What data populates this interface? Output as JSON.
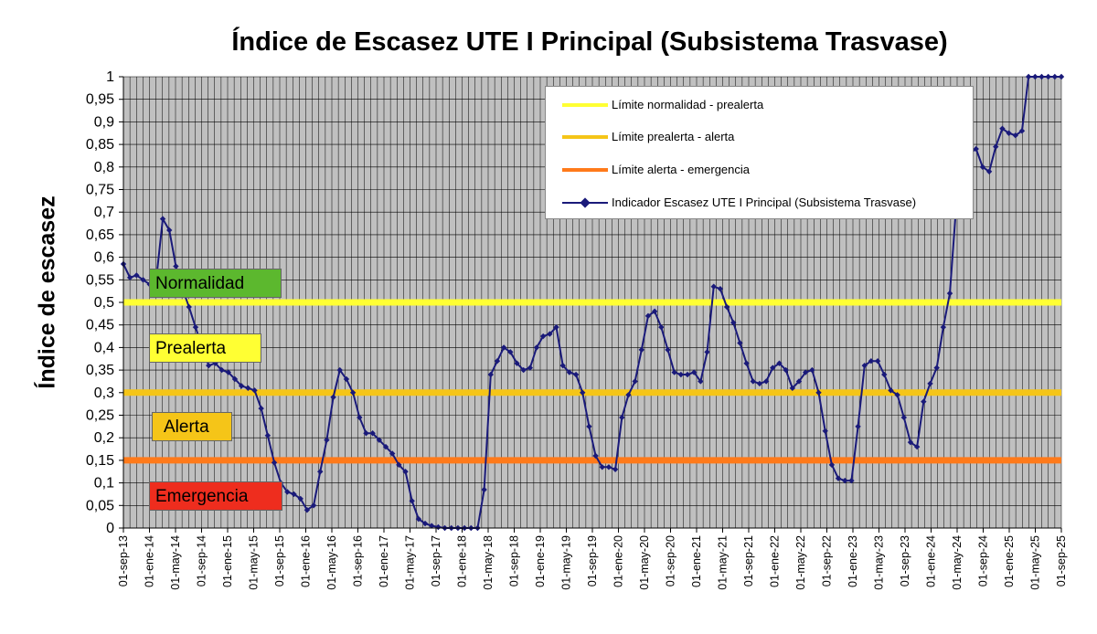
{
  "chart_data": {
    "type": "line",
    "title": "Índice de Escasez UTE I Principal (Subsistema Trasvase)",
    "ylabel": "Índice de escasez",
    "xlabel": "",
    "ylim": [
      0,
      1
    ],
    "y_ticks": [
      "0",
      "0,05",
      "0,1",
      "0,15",
      "0,2",
      "0,25",
      "0,3",
      "0,35",
      "0,4",
      "0,45",
      "0,5",
      "0,55",
      "0,6",
      "0,65",
      "0,7",
      "0,75",
      "0,8",
      "0,85",
      "0,9",
      "0,95",
      "1"
    ],
    "x_ticks": [
      "01-sep-13",
      "01-ene-14",
      "01-may-14",
      "01-sep-14",
      "01-ene-15",
      "01-may-15",
      "01-sep-15",
      "01-ene-16",
      "01-may-16",
      "01-sep-16",
      "01-ene-17",
      "01-may-17",
      "01-sep-17",
      "01-ene-18",
      "01-may-18",
      "01-sep-18",
      "01-ene-19",
      "01-may-19",
      "01-sep-19",
      "01-ene-20",
      "01-may-20",
      "01-sep-20",
      "01-ene-21",
      "01-may-21",
      "01-sep-21",
      "01-ene-22",
      "01-may-22",
      "01-sep-22",
      "01-ene-23",
      "01-may-23",
      "01-sep-23",
      "01-ene-24",
      "01-may-24",
      "01-sep-24",
      "01-ene-25",
      "01-may-25",
      "01-sep-25"
    ],
    "grid": true,
    "legend_position": "top-right",
    "series": [
      {
        "name": "Indicador Escasez UTE I Principal (Subsistema Trasvase)",
        "color": "#1a1a7a",
        "values": [
          0.585,
          0.555,
          0.56,
          0.55,
          0.54,
          0.55,
          0.685,
          0.66,
          0.58,
          0.53,
          0.49,
          0.445,
          0.4,
          0.36,
          0.365,
          0.35,
          0.345,
          0.33,
          0.315,
          0.31,
          0.305,
          0.265,
          0.205,
          0.145,
          0.1,
          0.08,
          0.075,
          0.065,
          0.04,
          0.05,
          0.125,
          0.195,
          0.29,
          0.35,
          0.33,
          0.3,
          0.245,
          0.21,
          0.21,
          0.195,
          0.18,
          0.165,
          0.14,
          0.125,
          0.06,
          0.02,
          0.01,
          0.005,
          0.002,
          0.0,
          0.0,
          0.0,
          0.0,
          0.0,
          0.0,
          0.085,
          0.34,
          0.37,
          0.4,
          0.39,
          0.365,
          0.35,
          0.355,
          0.4,
          0.425,
          0.43,
          0.445,
          0.36,
          0.345,
          0.34,
          0.3,
          0.225,
          0.16,
          0.135,
          0.135,
          0.13,
          0.245,
          0.295,
          0.325,
          0.395,
          0.47,
          0.48,
          0.445,
          0.395,
          0.345,
          0.34,
          0.34,
          0.345,
          0.325,
          0.39,
          0.535,
          0.53,
          0.49,
          0.455,
          0.41,
          0.365,
          0.325,
          0.32,
          0.325,
          0.355,
          0.365,
          0.35,
          0.31,
          0.325,
          0.345,
          0.35,
          0.3,
          0.215,
          0.14,
          0.11,
          0.105,
          0.105,
          0.225,
          0.36,
          0.37,
          0.37,
          0.34,
          0.305,
          0.295,
          0.245,
          0.19,
          0.18,
          0.28,
          0.32,
          0.355,
          0.445,
          0.52,
          0.72,
          0.79,
          0.83,
          0.84,
          0.8,
          0.79,
          0.845,
          0.885,
          0.875,
          0.87,
          0.88,
          1.0,
          1.0,
          1.0,
          1.0,
          1.0,
          1.0
        ]
      }
    ],
    "threshold_lines": [
      {
        "name": "Límite normalidad - prealerta",
        "value": 0.5,
        "color": "#ffff33"
      },
      {
        "name": "Límite prealerta - alerta",
        "value": 0.3,
        "color": "#f5c518"
      },
      {
        "name": "Límite alerta - emergencia",
        "value": 0.15,
        "color": "#ff7a1a"
      }
    ],
    "zones": [
      {
        "label": "Normalidad",
        "color": "#5cb82e"
      },
      {
        "label": "Prealerta",
        "color": "#ffff33"
      },
      {
        "label": "Alerta",
        "color": "#f5c518"
      },
      {
        "label": "Emergencia",
        "color": "#ee2d1e"
      }
    ]
  },
  "legend": {
    "items": [
      "Límite normalidad - prealerta",
      "Límite prealerta - alerta",
      "Límite alerta - emergencia",
      "Indicador Escasez UTE I Principal (Subsistema Trasvase)"
    ]
  }
}
